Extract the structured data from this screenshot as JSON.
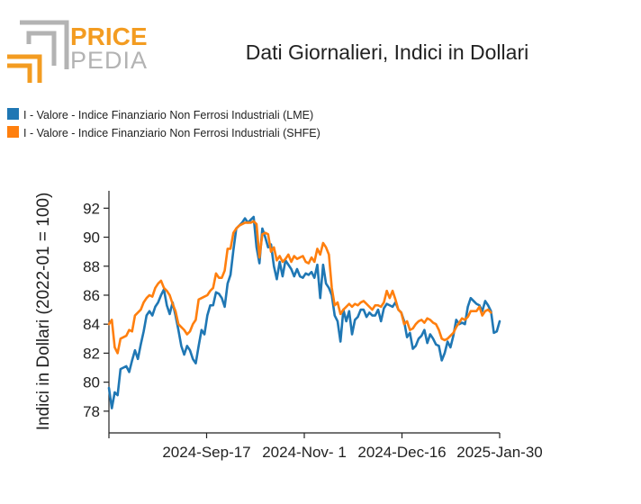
{
  "brand": {
    "line1": "PRICE",
    "line2": "PEDIA",
    "accent_color": "#f39c21",
    "gray_color": "#b3b3b3"
  },
  "chart_data": {
    "type": "line",
    "title": "Dati Giornalieri, Indici in Dollari",
    "ylabel": "Indici in Dollari (2022-01 = 100)",
    "xlabel": "",
    "x_tick_labels": [
      "2024-Sep-17",
      "2024-Nov- 1",
      "2024-Dec-16",
      "2025-Jan-30"
    ],
    "y_ticks": [
      78,
      80,
      82,
      84,
      86,
      88,
      90,
      92
    ],
    "ylim": [
      76.5,
      93.2
    ],
    "legend_position": "top-left",
    "grid": false,
    "series": [
      {
        "name": "I - Valore - Indice Finanziario Non Ferrosi Industriali (LME)",
        "color": "#1f77b4",
        "values": [
          79.6,
          78.2,
          79.3,
          79.1,
          80.9,
          81.0,
          81.1,
          80.7,
          81.5,
          82.2,
          81.6,
          82.6,
          83.5,
          84.6,
          84.9,
          84.6,
          85.2,
          85.5,
          86.0,
          86.4,
          85.3,
          84.7,
          85.5,
          84.6,
          83.6,
          82.5,
          81.9,
          82.5,
          82.2,
          81.6,
          81.3,
          82.5,
          83.6,
          83.3,
          84.6,
          85.3,
          85.3,
          86.2,
          86.1,
          85.8,
          85.2,
          86.8,
          87.4,
          89.1,
          90.6,
          90.8,
          91.0,
          91.3,
          91.0,
          91.2,
          91.4,
          89.3,
          88.2,
          90.6,
          90.0,
          89.3,
          89.5,
          88.0,
          87.1,
          88.3,
          87.3,
          88.4,
          88.1,
          87.8,
          87.3,
          87.8,
          87.3,
          87.2,
          87.5,
          87.4,
          87.6,
          87.2,
          88.1,
          85.8,
          88.1,
          86.8,
          86.5,
          86.0,
          84.6,
          84.2,
          82.8,
          85.0,
          84.2,
          84.9,
          83.3,
          84.3,
          84.5,
          85.0,
          85.0,
          84.5,
          84.8,
          84.6,
          84.6,
          85.0,
          84.2,
          85.1,
          85.4,
          85.3,
          85.2,
          85.5,
          85.0,
          84.8,
          84.2,
          83.1,
          83.4,
          82.3,
          82.5,
          83.0,
          83.2,
          83.6,
          82.7,
          83.3,
          83.0,
          82.6,
          82.5,
          81.5,
          82.0,
          82.8,
          82.4,
          83.2,
          84.3,
          84.0,
          84.1,
          84.0,
          85.2,
          85.8,
          85.6,
          85.4,
          85.3,
          84.9,
          85.6,
          85.3,
          84.9,
          83.4,
          83.5,
          84.2
        ]
      },
      {
        "name": "I - Valore - Indice Finanziario Non Ferrosi Industriali (SHFE)",
        "color": "#ff7f0e",
        "values": [
          84.0,
          84.3,
          82.4,
          82.0,
          83.0,
          83.1,
          83.2,
          83.6,
          83.5,
          84.6,
          84.8,
          85.0,
          85.5,
          85.8,
          86.0,
          85.9,
          86.5,
          86.8,
          87.0,
          86.5,
          86.3,
          86.0,
          85.4,
          84.9,
          84.0,
          83.8,
          83.6,
          83.3,
          83.5,
          84.0,
          84.3,
          85.7,
          85.8,
          85.9,
          86.0,
          86.3,
          86.5,
          87.5,
          87.2,
          87.2,
          87.7,
          89.2,
          89.2,
          90.3,
          90.6,
          90.8,
          90.9,
          91.0,
          91.0,
          91.0,
          91.1,
          90.9,
          88.6,
          90.2,
          90.3,
          90.2,
          89.0,
          89.3,
          88.4,
          88.7,
          88.3,
          88.5,
          88.8,
          88.3,
          88.7,
          88.5,
          88.6,
          88.7,
          88.3,
          88.2,
          88.6,
          88.3,
          89.2,
          88.8,
          89.6,
          89.3,
          88.8,
          86.5,
          85.3,
          85.5,
          84.7,
          85.0,
          85.2,
          85.4,
          85.2,
          85.4,
          85.3,
          85.5,
          85.6,
          85.4,
          85.2,
          85.0,
          85.3,
          85.3,
          85.2,
          85.5,
          86.3,
          85.8,
          86.3,
          85.7,
          85.0,
          84.8,
          84.0,
          84.2,
          83.6,
          83.7,
          84.0,
          84.2,
          84.3,
          84.1,
          84.4,
          84.3,
          84.1,
          84.0,
          83.6,
          83.0,
          82.9,
          83.0,
          83.2,
          83.4,
          83.8,
          84.1,
          84.4,
          84.3,
          84.5,
          84.9,
          84.9,
          84.9,
          85.2,
          84.6,
          84.9,
          85.0,
          84.8,
          null,
          null,
          null
        ]
      }
    ]
  }
}
